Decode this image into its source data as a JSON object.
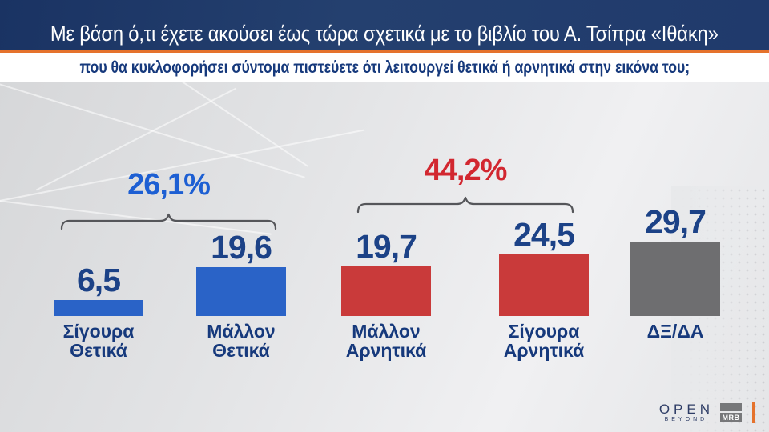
{
  "header": {
    "title": "Με βάση ό,τι έχετε ακούσει έως τώρα σχετικά με το βιβλίο του Α. Τσίπρα «Ιθάκη»",
    "subtitle": "που θα κυκλοφορήσει σύντομα πιστεύετε ότι λειτουργεί θετικά ή αρνητικά στην εικόνα του;"
  },
  "chart_data": {
    "type": "bar",
    "orientation": "vertical",
    "title": "Με βάση ό,τι έχετε ακούσει έως τώρα σχετικά με το βιβλίο του Α. Τσίπρα «Ιθάκη» που θα κυκλοφορήσει σύντομα πιστεύετε ότι λειτουργεί θετικά ή αρνητικά στην εικόνα του;",
    "categories": [
      "Σίγουρα Θετικά",
      "Μάλλον Θετικά",
      "Μάλλον Αρνητικά",
      "Σίγουρα Αρνητικά",
      "ΔΞ/ΔΑ"
    ],
    "values": [
      6.5,
      19.6,
      19.7,
      24.5,
      29.7
    ],
    "value_labels": [
      "6,5",
      "19,6",
      "19,7",
      "24,5",
      "29,7"
    ],
    "unit": "%",
    "ylim": [
      0,
      35
    ],
    "grid": false,
    "legend": false,
    "bars": [
      {
        "category": "Σίγουρα Θετικά",
        "category_lines": [
          "Σίγουρα",
          "Θετικά"
        ],
        "value": 6.5,
        "value_label": "6,5",
        "color": "#2a63c7"
      },
      {
        "category": "Μάλλον Θετικά",
        "category_lines": [
          "Μάλλον",
          "Θετικά"
        ],
        "value": 19.6,
        "value_label": "19,6",
        "color": "#2a63c7"
      },
      {
        "category": "Μάλλον Αρνητικά",
        "category_lines": [
          "Μάλλον",
          "Αρνητικά"
        ],
        "value": 19.7,
        "value_label": "19,7",
        "color": "#c93a3a"
      },
      {
        "category": "Σίγουρα Αρνητικά",
        "category_lines": [
          "Σίγουρα",
          "Αρνητικά"
        ],
        "value": 24.5,
        "value_label": "24,5",
        "color": "#c93a3a"
      },
      {
        "category": "ΔΞ/ΔΑ",
        "category_lines": [
          "ΔΞ/ΔΑ"
        ],
        "value": 29.7,
        "value_label": "29,7",
        "color": "#6e6e70"
      }
    ],
    "groups": [
      {
        "label": "26,1%",
        "value": 26.1,
        "color": "#1d5fd3",
        "spans_categories": [
          "Σίγουρα Θετικά",
          "Μάλλον Θετικά"
        ]
      },
      {
        "label": "44,2%",
        "value": 44.2,
        "color": "#d22730",
        "spans_categories": [
          "Μάλλον Αρνητικά",
          "Σίγουρα Αρνητικά"
        ]
      }
    ]
  },
  "branding": {
    "channel": "OPEN",
    "tagline": "BEYOND",
    "pollster": "MRB"
  },
  "colors": {
    "header_bg": "#20396b",
    "accent_orange": "#e5722c",
    "subtitle_text": "#16397c",
    "positive_bar": "#2a63c7",
    "negative_bar": "#c93a3a",
    "neutral_bar": "#6e6e70",
    "value_text": "#1c4287",
    "category_text": "#16397c",
    "positive_total_text": "#1d5fd3",
    "negative_total_text": "#d22730",
    "bracket": "#55565a",
    "logo_navy": "#2e3d66",
    "mrb_gray": "#77787a"
  }
}
